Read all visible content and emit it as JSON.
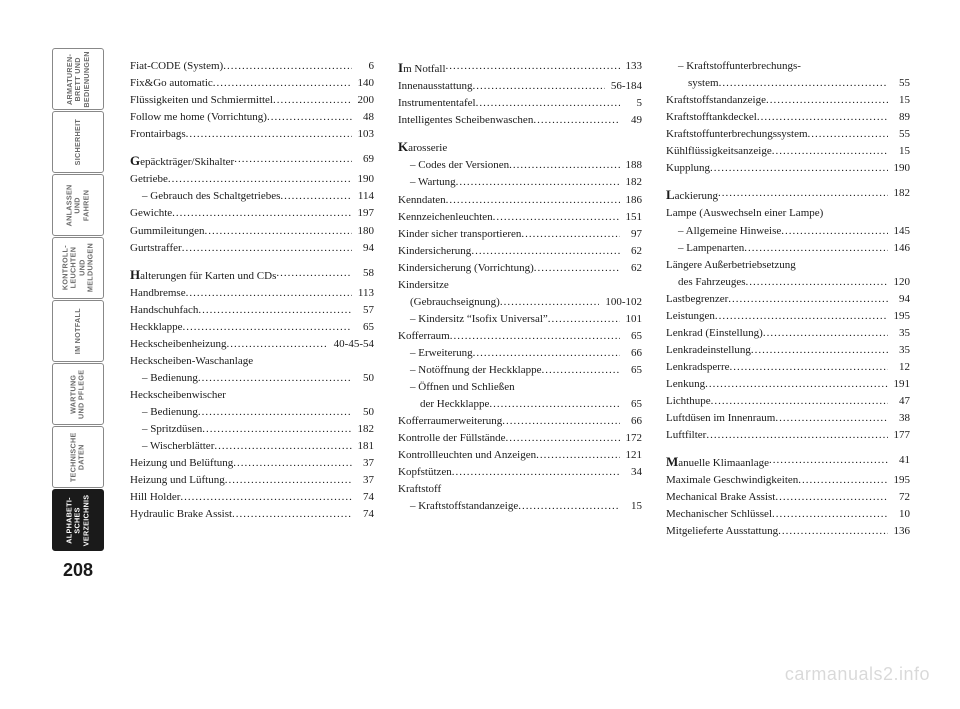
{
  "page_number": "208",
  "watermark": "carmanuals2.info",
  "tabs": [
    {
      "label": "ARMATUREN-\nBRETT UND\nBEDIENUNGEN",
      "active": false
    },
    {
      "label": "SICHERHEIT",
      "active": false
    },
    {
      "label": "ANLASSEN\nUND FAHREN",
      "active": false
    },
    {
      "label": "KONTROLL-\nLEUCHTEN UND\nMELDUNGEN",
      "active": false
    },
    {
      "label": "IM NOTFALL",
      "active": false
    },
    {
      "label": "WARTUNG\nUND PFLEGE",
      "active": false
    },
    {
      "label": "TECHNISCHE\nDATEN",
      "active": false
    },
    {
      "label": "ALPHABETI-\nSCHES\nVERZEICHNIS",
      "active": true
    }
  ],
  "columns": [
    [
      {
        "text": "Fiat-CODE (System)",
        "page": "6"
      },
      {
        "text": "Fix&Go automatic",
        "page": "140"
      },
      {
        "text": "Flüssigkeiten und Schmiermittel",
        "page": "200"
      },
      {
        "text": "Follow me home (Vorrichtung)",
        "page": "48"
      },
      {
        "text": "Frontairbags",
        "page": "103"
      },
      {
        "gap": true
      },
      {
        "cap": "G",
        "text": "epäckträger/Skihalter",
        "page": "69"
      },
      {
        "text": "Getriebe",
        "page": "190"
      },
      {
        "text": "– Gebrauch des Schaltgetriebes",
        "page": "114",
        "indent": true
      },
      {
        "text": "Gewichte",
        "page": "197"
      },
      {
        "text": "Gummileitungen",
        "page": "180"
      },
      {
        "text": "Gurtstraffer",
        "page": "94"
      },
      {
        "gap": true
      },
      {
        "cap": "H",
        "text": "alterungen für Karten und CDs",
        "page": "58"
      },
      {
        "text": "Handbremse",
        "page": "113"
      },
      {
        "text": "Handschuhfach",
        "page": "57"
      },
      {
        "text": "Heckklappe",
        "page": "65"
      },
      {
        "text": "Heckscheibenheizung",
        "page": "40-45-54"
      },
      {
        "text": "Heckscheiben-Waschanlage"
      },
      {
        "text": "– Bedienung",
        "page": "50",
        "indent": true
      },
      {
        "text": "Heckscheibenwischer"
      },
      {
        "text": "– Bedienung",
        "page": "50",
        "indent": true
      },
      {
        "text": "– Spritzdüsen",
        "page": "182",
        "indent": true
      },
      {
        "text": "– Wischerblätter",
        "page": "181",
        "indent": true
      },
      {
        "text": "Heizung und Belüftung",
        "page": "37"
      },
      {
        "text": "Heizung und Lüftung",
        "page": "37"
      },
      {
        "text": "Hill Holder",
        "page": "74"
      },
      {
        "text": "Hydraulic Brake Assist",
        "page": "74"
      }
    ],
    [
      {
        "cap": "I",
        "text": "m Notfall",
        "page": "133"
      },
      {
        "text": "Innenausstattung",
        "page": "56-184"
      },
      {
        "text": "Instrumententafel",
        "page": "5"
      },
      {
        "text": "Intelligentes Scheibenwaschen",
        "page": "49"
      },
      {
        "gap": true
      },
      {
        "cap": "K",
        "text": "arosserie"
      },
      {
        "text": "– Codes der Versionen",
        "page": "188",
        "indent": true
      },
      {
        "text": "– Wartung",
        "page": "182",
        "indent": true
      },
      {
        "text": "Kenndaten",
        "page": "186"
      },
      {
        "text": "Kennzeichenleuchten",
        "page": "151"
      },
      {
        "text": "Kinder sicher transportieren",
        "page": "97"
      },
      {
        "text": "Kindersicherung",
        "page": "62"
      },
      {
        "text": "Kindersicherung (Vorrichtung)",
        "page": "62"
      },
      {
        "text": "Kindersitze"
      },
      {
        "text": "(Gebrauchseignung)",
        "page": "100-102",
        "indent": true
      },
      {
        "text": "– Kindersitz “Isofix Universal”",
        "page": "101",
        "indent": true
      },
      {
        "text": "Kofferraum",
        "page": "65"
      },
      {
        "text": "– Erweiterung",
        "page": "66",
        "indent": true
      },
      {
        "text": "– Notöffnung der Heckklappe",
        "page": "65",
        "indent": true
      },
      {
        "text": "– Öffnen und Schließen",
        "indent": true
      },
      {
        "text": "der Heckklappe",
        "page": "65",
        "indent": true,
        "extra_indent": true
      },
      {
        "text": "Kofferraumerweiterung",
        "page": "66"
      },
      {
        "text": "Kontrolle der Füllstände",
        "page": "172"
      },
      {
        "text": "Kontrollleuchten und Anzeigen",
        "page": "121"
      },
      {
        "text": "Kopfstützen",
        "page": "34"
      },
      {
        "text": "Kraftstoff"
      },
      {
        "text": "– Kraftstoffstandanzeige",
        "page": "15",
        "indent": true
      }
    ],
    [
      {
        "text": "– Kraftstoffunterbrechungs-",
        "indent": true
      },
      {
        "text": "system",
        "page": "55",
        "indent": true,
        "extra_indent": true
      },
      {
        "text": "Kraftstoffstandanzeige",
        "page": "15"
      },
      {
        "text": "Kraftstofftankdeckel",
        "page": "89"
      },
      {
        "text": "Kraftstoffunterbrechungssystem",
        "page": "55"
      },
      {
        "text": "Kühlflüssigkeitsanzeige",
        "page": "15"
      },
      {
        "text": "Kupplung",
        "page": "190"
      },
      {
        "gap": true
      },
      {
        "cap": "L",
        "text": "ackierung",
        "page": "182"
      },
      {
        "text": "Lampe (Auswechseln einer Lampe)"
      },
      {
        "text": "– Allgemeine Hinweise",
        "page": "145",
        "indent": true
      },
      {
        "text": "– Lampenarten",
        "page": "146",
        "indent": true
      },
      {
        "text": "Längere Außerbetriebsetzung"
      },
      {
        "text": "des Fahrzeuges",
        "page": "120",
        "indent": true
      },
      {
        "text": "Lastbegrenzer",
        "page": "94"
      },
      {
        "text": "Leistungen",
        "page": "195"
      },
      {
        "text": "Lenkrad (Einstellung)",
        "page": "35"
      },
      {
        "text": "Lenkradeinstellung",
        "page": "35"
      },
      {
        "text": "Lenkradsperre",
        "page": "12"
      },
      {
        "text": "Lenkung",
        "page": "191"
      },
      {
        "text": "Lichthupe",
        "page": "47"
      },
      {
        "text": "Luftdüsen im Innenraum",
        "page": "38"
      },
      {
        "text": "Luftfilter",
        "page": "177"
      },
      {
        "gap": true
      },
      {
        "cap": "M",
        "text": "anuelle Klimaanlage",
        "page": "41"
      },
      {
        "text": "Maximale Geschwindigkeiten",
        "page": "195"
      },
      {
        "text": "Mechanical Brake Assist",
        "page": "72"
      },
      {
        "text": "Mechanischer Schlüssel",
        "page": "10"
      },
      {
        "text": "Mitgelieferte Ausstattung",
        "page": "136"
      }
    ]
  ]
}
